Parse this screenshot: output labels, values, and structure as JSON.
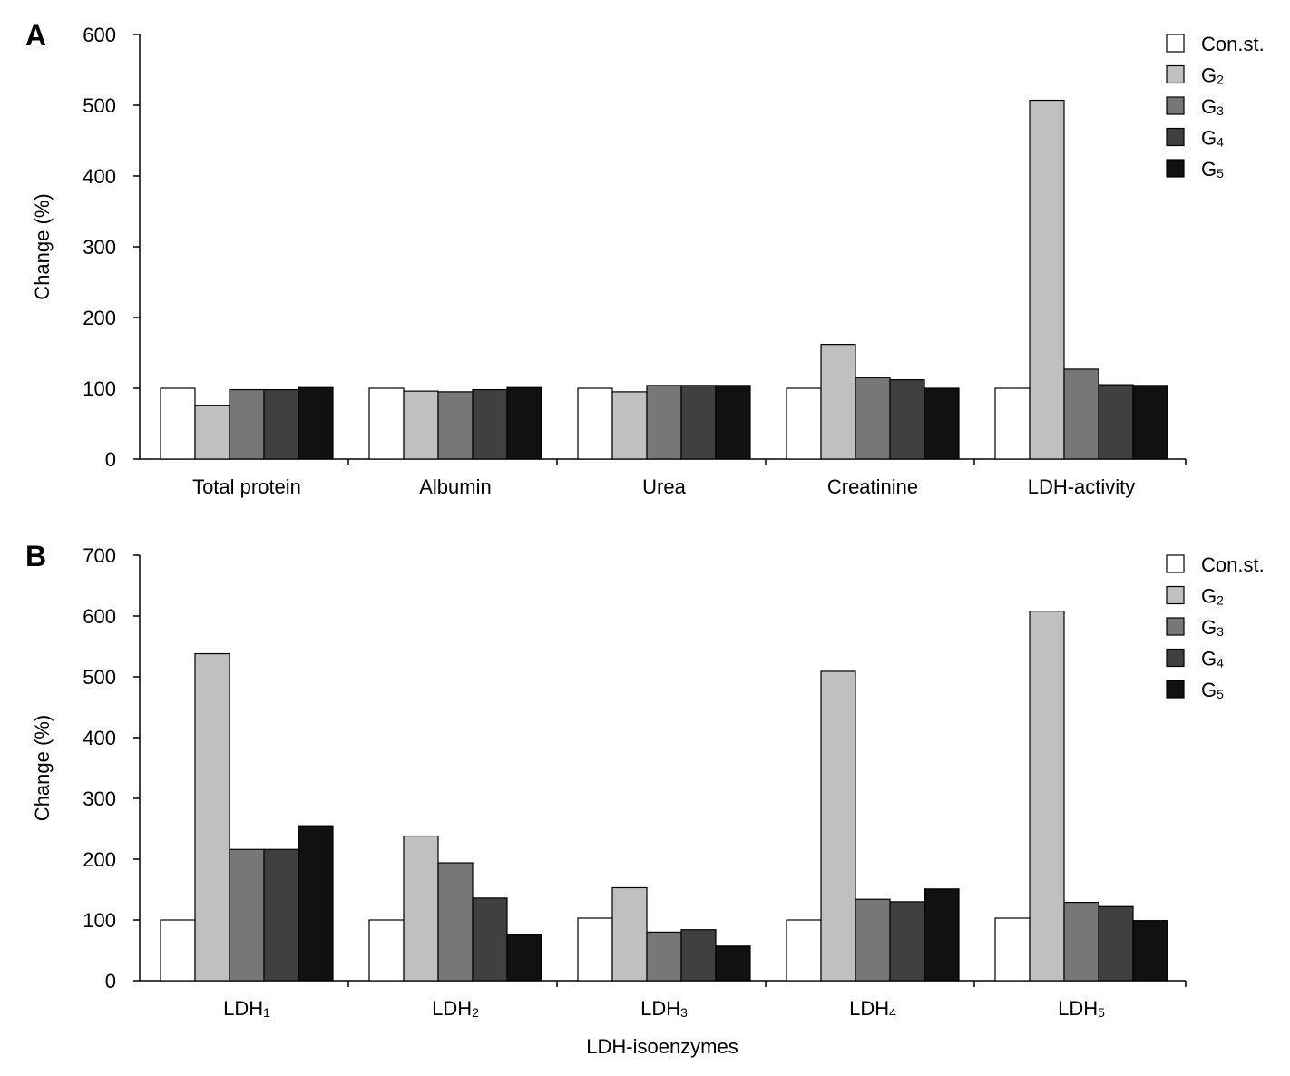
{
  "colors": {
    "Con.st.": "#ffffff",
    "G2": "#c0c0c0",
    "G3": "#777777",
    "G4": "#404040",
    "G5": "#111111",
    "stroke": "#000000"
  },
  "chart_data": [
    {
      "type": "bar",
      "panel": "A",
      "ylabel": "Change (%)",
      "xlabel": "",
      "ylim": [
        0,
        600
      ],
      "yticks": [
        0,
        100,
        200,
        300,
        400,
        500,
        600
      ],
      "grid": false,
      "legend_position": "top-right",
      "categories": [
        {
          "main": "Total protein",
          "sub": ""
        },
        {
          "main": "Albumin",
          "sub": ""
        },
        {
          "main": "Urea",
          "sub": ""
        },
        {
          "main": "Creatinine",
          "sub": ""
        },
        {
          "main": "LDH-activity",
          "sub": ""
        }
      ],
      "series": [
        {
          "name": "Con.st.",
          "main": "Con.st.",
          "sub": "",
          "values": [
            100,
            100,
            100,
            100,
            100
          ]
        },
        {
          "name": "G2",
          "main": "G",
          "sub": "2",
          "values": [
            76,
            96,
            95,
            162,
            507
          ]
        },
        {
          "name": "G3",
          "main": "G",
          "sub": "3",
          "values": [
            98,
            95,
            104,
            115,
            127
          ]
        },
        {
          "name": "G4",
          "main": "G",
          "sub": "4",
          "values": [
            98,
            98,
            104,
            112,
            105
          ]
        },
        {
          "name": "G5",
          "main": "G",
          "sub": "5",
          "values": [
            101,
            101,
            104,
            100,
            104
          ]
        }
      ]
    },
    {
      "type": "bar",
      "panel": "B",
      "ylabel": "Change (%)",
      "xlabel": "LDH-isoenzymes",
      "ylim": [
        0,
        700
      ],
      "yticks": [
        0,
        100,
        200,
        300,
        400,
        500,
        600,
        700
      ],
      "grid": false,
      "legend_position": "top-right",
      "categories": [
        {
          "main": "LDH",
          "sub": "1"
        },
        {
          "main": "LDH",
          "sub": "2"
        },
        {
          "main": "LDH",
          "sub": "3"
        },
        {
          "main": "LDH",
          "sub": "4"
        },
        {
          "main": "LDH",
          "sub": "5"
        }
      ],
      "series": [
        {
          "name": "Con.st.",
          "main": "Con.st.",
          "sub": "",
          "values": [
            100,
            100,
            103,
            100,
            103
          ]
        },
        {
          "name": "G2",
          "main": "G",
          "sub": "2",
          "values": [
            538,
            238,
            153,
            509,
            608
          ]
        },
        {
          "name": "G3",
          "main": "G",
          "sub": "3",
          "values": [
            216,
            194,
            80,
            134,
            129
          ]
        },
        {
          "name": "G4",
          "main": "G",
          "sub": "4",
          "values": [
            216,
            136,
            84,
            130,
            122
          ]
        },
        {
          "name": "G5",
          "main": "G",
          "sub": "5",
          "values": [
            255,
            76,
            57,
            151,
            99
          ]
        }
      ]
    }
  ]
}
